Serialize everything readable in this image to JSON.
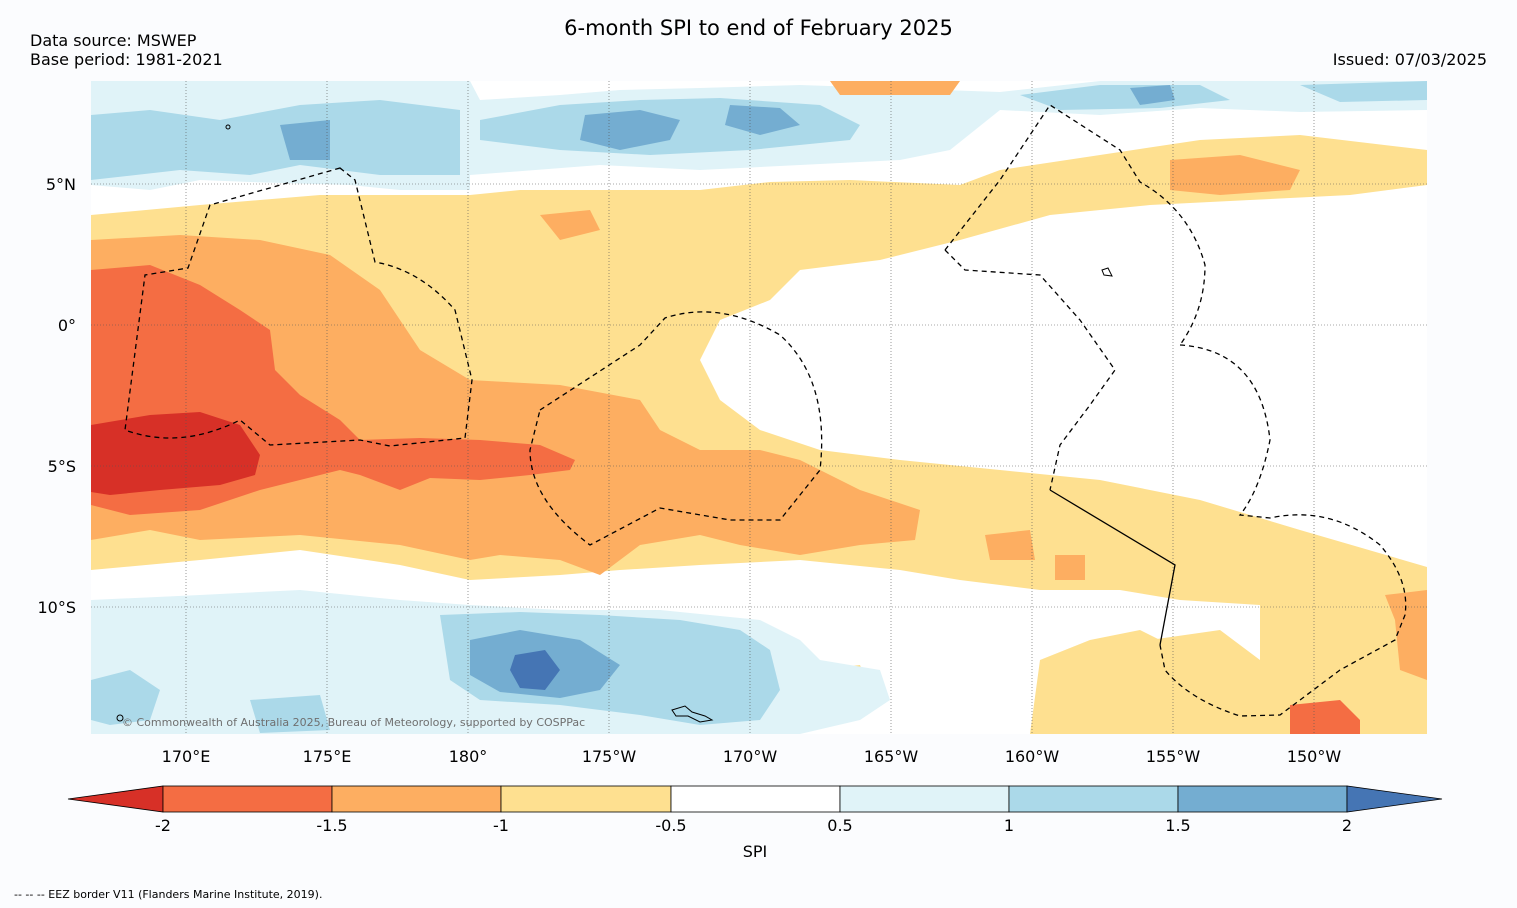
{
  "title": "6-month SPI to end of February 2025",
  "data_source": "Data source: MSWEP",
  "base_period": "Base period: 1981-2021",
  "issued": "Issued: 07/03/2025",
  "copyright": "© Commonwealth of Australia 2025, Bureau of Meteorology, supported by COSPPac",
  "footer_legend": "--  --  -- EEZ border V11 (Flanders Marine Institute, 2019).",
  "lat_labels": [
    "5°N",
    "0°",
    "5°S",
    "10°S"
  ],
  "lon_labels": [
    "170°E",
    "175°E",
    "180°",
    "175°W",
    "170°W",
    "165°W",
    "160°W",
    "155°W",
    "150°W"
  ],
  "colorbar": {
    "label": "SPI",
    "ticks": [
      "-2",
      "-1.5",
      "-1",
      "-0.5",
      "0.5",
      "1",
      "1.5",
      "2"
    ],
    "colors": [
      "#d73027",
      "#f46d43",
      "#fdae61",
      "#fee090",
      "#ffffff",
      "#e0f3f8",
      "#abd9e9",
      "#74add1",
      "#4575b4"
    ]
  }
}
